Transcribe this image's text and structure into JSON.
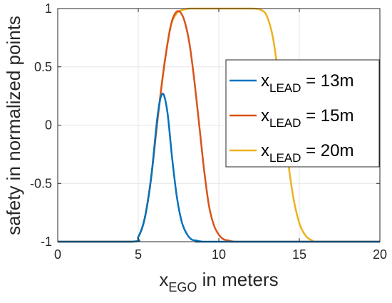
{
  "chart_data": {
    "type": "line",
    "xlabel_main": "x",
    "xlabel_sub": "EGO",
    "xlabel_rest": " in meters",
    "ylabel": "safety in normalized points",
    "xlim": [
      0,
      20
    ],
    "ylim": [
      -1,
      1
    ],
    "xticks": [
      0,
      5,
      10,
      15,
      20
    ],
    "xtick_labels": [
      "0",
      "5",
      "10",
      "15",
      "20"
    ],
    "yticks": [
      -1,
      -0.5,
      0,
      0.5,
      1
    ],
    "ytick_labels": [
      "-1",
      "-0.5",
      "0",
      "0.5",
      "1"
    ],
    "grid": true,
    "legend_position": "right",
    "series": [
      {
        "legend_main": "x",
        "legend_sub": "LEAD",
        "legend_rest": " = 13m",
        "color": "#0072BD",
        "x": [
          0,
          4.6,
          5.0,
          5.4,
          5.8,
          6.2,
          6.5,
          6.8,
          7.1,
          7.4,
          7.7,
          8.0,
          8.3,
          8.6,
          9.0,
          9.5,
          20
        ],
        "y": [
          -1,
          -1,
          -0.96,
          -0.8,
          -0.45,
          0.08,
          0.27,
          0.12,
          -0.28,
          -0.62,
          -0.83,
          -0.93,
          -0.98,
          -0.99,
          -1,
          -1,
          -1
        ]
      },
      {
        "legend_main": "x",
        "legend_sub": "LEAD",
        "legend_rest": " = 15m",
        "color": "#D95319",
        "x": [
          0,
          4.6,
          5.0,
          5.4,
          5.8,
          6.2,
          6.6,
          7.0,
          7.3,
          7.6,
          7.9,
          8.2,
          8.5,
          8.8,
          9.1,
          9.4,
          9.7,
          10.0,
          10.3,
          10.6,
          11.0,
          11.5,
          20
        ],
        "y": [
          -1,
          -1,
          -0.96,
          -0.8,
          -0.45,
          0.05,
          0.5,
          0.84,
          0.96,
          0.97,
          0.88,
          0.68,
          0.36,
          -0.02,
          -0.4,
          -0.7,
          -0.86,
          -0.94,
          -0.98,
          -0.99,
          -1,
          -1,
          -1
        ]
      },
      {
        "legend_main": "x",
        "legend_sub": "LEAD",
        "legend_rest": " = 20m",
        "color": "#EDB120",
        "x": [
          0,
          4.6,
          5.0,
          5.4,
          5.8,
          6.2,
          6.6,
          7.0,
          7.4,
          7.8,
          8.2,
          9.0,
          10.0,
          11.0,
          12.0,
          12.6,
          13.0,
          13.4,
          13.8,
          14.2,
          14.6,
          15.0,
          15.4,
          15.8,
          16.2,
          20
        ],
        "y": [
          -1,
          -1,
          -0.96,
          -0.8,
          -0.45,
          0.05,
          0.5,
          0.84,
          0.96,
          0.99,
          1,
          1,
          1,
          1,
          1,
          0.99,
          0.93,
          0.72,
          0.3,
          -0.2,
          -0.6,
          -0.84,
          -0.95,
          -0.99,
          -1,
          -1
        ]
      }
    ]
  }
}
